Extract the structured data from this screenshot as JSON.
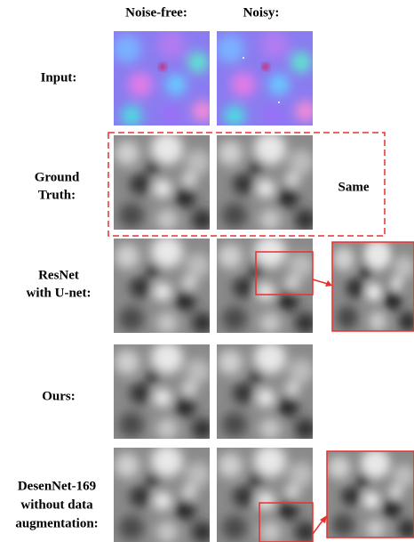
{
  "header": {
    "columns": [
      "Noise-free:",
      "Noisy:"
    ]
  },
  "rows": [
    {
      "label": [
        "Input:"
      ]
    },
    {
      "label": [
        "Ground",
        "Truth:"
      ],
      "note": "Same"
    },
    {
      "label": [
        "ResNet",
        "with U-net:"
      ]
    },
    {
      "label": [
        "Ours:"
      ]
    },
    {
      "label": [
        "DesenNet-169",
        "without data",
        "augmentation:"
      ]
    }
  ]
}
